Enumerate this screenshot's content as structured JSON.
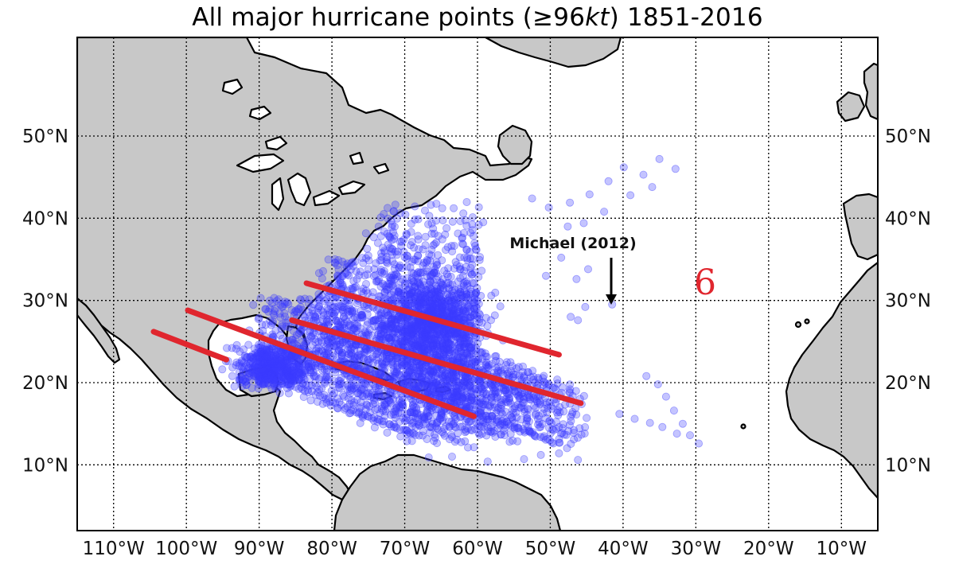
{
  "title": {
    "prefix": "All major hurricane points (",
    "symbol": "≥",
    "value": "96",
    "unit": "kt",
    "suffix": ") 1851-2016"
  },
  "colors": {
    "land": "#c8c8c8",
    "ocean": "#ffffff",
    "points": "#3b3bff",
    "trend_lines": "#e0262e",
    "symbol": "#e0262e"
  },
  "chart_data": {
    "type": "scatter",
    "title": "All major hurricane points (≥96kt) 1851-2016",
    "projection": "equirectangular",
    "grid": true,
    "xlim": [
      -115,
      -5
    ],
    "ylim": [
      2,
      62
    ],
    "x_ticks": [
      {
        "value": -110,
        "label": "110°W"
      },
      {
        "value": -100,
        "label": "100°W"
      },
      {
        "value": -90,
        "label": "90°W"
      },
      {
        "value": -80,
        "label": "80°W"
      },
      {
        "value": -70,
        "label": "70°W"
      },
      {
        "value": -60,
        "label": "60°W"
      },
      {
        "value": -50,
        "label": "50°W"
      },
      {
        "value": -40,
        "label": "40°W"
      },
      {
        "value": -30,
        "label": "30°W"
      },
      {
        "value": -20,
        "label": "20°W"
      },
      {
        "value": -10,
        "label": "10°W"
      }
    ],
    "y_ticks": [
      {
        "value": 10,
        "label": "10°N"
      },
      {
        "value": 20,
        "label": "20°N"
      },
      {
        "value": 30,
        "label": "30°N"
      },
      {
        "value": 40,
        "label": "40°N"
      },
      {
        "value": 50,
        "label": "50°N"
      }
    ],
    "highlight_points": [
      [
        -41.5,
        29.5
      ],
      [
        -36.8,
        20.8
      ],
      [
        -35.2,
        19.8
      ],
      [
        -34.1,
        18.3
      ],
      [
        -33.0,
        16.6
      ],
      [
        -31.8,
        15.0
      ],
      [
        -30.8,
        13.6
      ],
      [
        -29.6,
        12.6
      ],
      [
        -40.5,
        16.2
      ],
      [
        -38.4,
        15.6
      ],
      [
        -36.3,
        15.1
      ],
      [
        -34.6,
        14.6
      ],
      [
        -32.6,
        13.8
      ],
      [
        -32.8,
        46.0
      ],
      [
        -35.0,
        47.2
      ],
      [
        -37.2,
        45.3
      ],
      [
        -39.9,
        46.2
      ],
      [
        -42.0,
        44.5
      ],
      [
        -44.6,
        42.9
      ],
      [
        -47.3,
        41.9
      ],
      [
        -36.0,
        43.8
      ],
      [
        -39.0,
        42.8
      ],
      [
        -42.6,
        40.8
      ],
      [
        -45.4,
        39.4
      ],
      [
        -47.6,
        39.0
      ],
      [
        -50.2,
        41.3
      ],
      [
        -52.5,
        42.4
      ],
      [
        -48.5,
        35.2
      ],
      [
        -50.6,
        33.0
      ],
      [
        -46.4,
        32.6
      ],
      [
        -44.8,
        33.8
      ],
      [
        -45.2,
        29.2
      ],
      [
        -46.2,
        27.6
      ],
      [
        -47.2,
        28.0
      ],
      [
        -48.8,
        11.4
      ],
      [
        -46.2,
        10.6
      ],
      [
        -51.3,
        11.2
      ],
      [
        -53.6,
        10.7
      ],
      [
        -58.6,
        10.4
      ],
      [
        -63.5,
        11.0
      ],
      [
        -66.7,
        10.9
      ]
    ],
    "cluster_center": [
      -72,
      25
    ],
    "dense_tracks_sampled": true,
    "annotations": [
      {
        "text": "Michael (2012)",
        "x": -41.5,
        "y": 29.5,
        "arrow": true
      }
    ],
    "overlay_lines": [
      {
        "from": [
          -104.5,
          26.2
        ],
        "to": [
          -94.5,
          22.8
        ]
      },
      {
        "from": [
          -99.8,
          28.8
        ],
        "to": [
          -60.5,
          15.9
        ]
      },
      {
        "from": [
          -85.5,
          27.6
        ],
        "to": [
          -45.8,
          17.5
        ]
      },
      {
        "from": [
          -83.5,
          32.1
        ],
        "to": [
          -48.8,
          23.4
        ]
      }
    ],
    "symbol_glyph": "6"
  }
}
